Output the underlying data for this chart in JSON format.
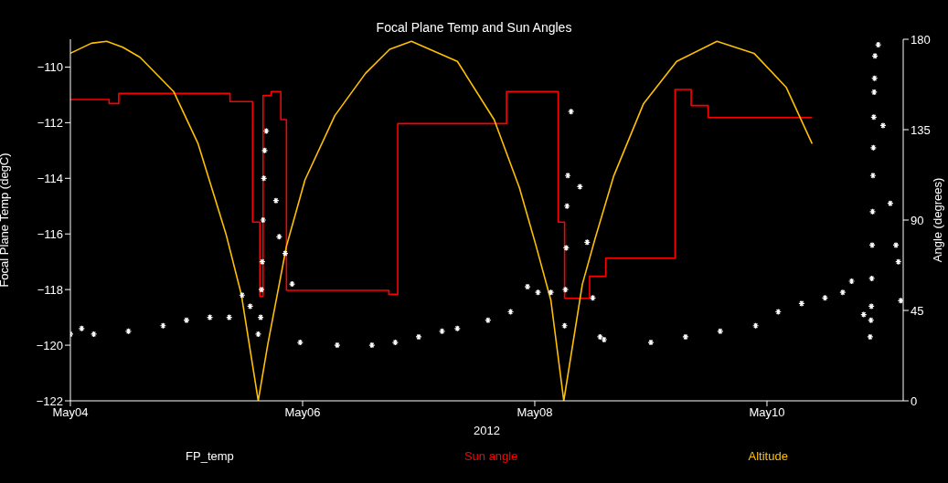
{
  "chart_data": {
    "type": "line",
    "title": "Focal Plane Temp and Sun Angles",
    "xlabel": "2012",
    "ylabel": "Focal Plane Temp (degC)",
    "y2label": "Angle (degrees)",
    "xlim": [
      "2012-05-04T00:00",
      "2012-05-11T04:10"
    ],
    "xticks": [
      {
        "value": "2012-05-04",
        "label": "May04"
      },
      {
        "value": "2012-05-06",
        "label": "May06"
      },
      {
        "value": "2012-05-08",
        "label": "May08"
      },
      {
        "value": "2012-05-10",
        "label": "May10"
      }
    ],
    "ylim": [
      -122,
      -109
    ],
    "yticks": [
      -122,
      -120,
      -118,
      -116,
      -114,
      -112,
      -110
    ],
    "y2lim": [
      0,
      180
    ],
    "y2ticks": [
      0,
      45,
      90,
      135,
      180
    ],
    "grid": false,
    "legend": "bottom",
    "series": [
      {
        "name": "FP_temp",
        "type": "scatter",
        "marker": "cross",
        "color": "#ffffff",
        "x": [
          "2012-05-04T00:00",
          "2012-05-04T02:20",
          "2012-05-04T04:50",
          "2012-05-04T12:00",
          "2012-05-04T19:10",
          "2012-05-05T00:00",
          "2012-05-05T04:50",
          "2012-05-05T08:50",
          "2012-05-05T11:30",
          "2012-05-05T13:10",
          "2012-05-05T14:50",
          "2012-05-05T15:20",
          "2012-05-05T15:30",
          "2012-05-05T15:40",
          "2012-05-05T15:50",
          "2012-05-05T16:00",
          "2012-05-05T16:10",
          "2012-05-05T16:30",
          "2012-05-05T18:30",
          "2012-05-05T19:10",
          "2012-05-05T20:24",
          "2012-05-05T21:50",
          "2012-05-05T23:30",
          "2012-05-06T07:10",
          "2012-05-06T14:20",
          "2012-05-06T19:10",
          "2012-05-07T00:00",
          "2012-05-07T04:50",
          "2012-05-07T08:00",
          "2012-05-07T14:20",
          "2012-05-07T19:00",
          "2012-05-07T22:30",
          "2012-05-08T00:40",
          "2012-05-08T03:20",
          "2012-05-08T06:10",
          "2012-05-08T06:20",
          "2012-05-08T06:30",
          "2012-05-08T06:40",
          "2012-05-08T06:50",
          "2012-05-08T07:30",
          "2012-05-08T09:20",
          "2012-05-08T10:50",
          "2012-05-08T12:00",
          "2012-05-08T13:30",
          "2012-05-08T14:20",
          "2012-05-09T00:00",
          "2012-05-09T07:10",
          "2012-05-09T14:20",
          "2012-05-09T21:40",
          "2012-05-10T02:20",
          "2012-05-10T07:10",
          "2012-05-10T12:00",
          "2012-05-10T15:40",
          "2012-05-10T17:30",
          "2012-05-10T20:00",
          "2012-05-10T21:20",
          "2012-05-10T21:30",
          "2012-05-10T21:35",
          "2012-05-10T21:40",
          "2012-05-10T21:45",
          "2012-05-10T21:50",
          "2012-05-10T21:55",
          "2012-05-10T22:00",
          "2012-05-10T22:05",
          "2012-05-10T22:10",
          "2012-05-10T22:15",
          "2012-05-10T22:20",
          "2012-05-10T23:00",
          "2012-05-11T00:00",
          "2012-05-11T01:30",
          "2012-05-11T02:40",
          "2012-05-11T03:10",
          "2012-05-11T03:40"
        ],
        "values": [
          -119.6,
          -119.4,
          -119.6,
          -119.5,
          -119.3,
          -119.1,
          -119.0,
          -119.0,
          -118.2,
          -118.6,
          -119.6,
          -119.0,
          -118.0,
          -117.0,
          -115.5,
          -114.0,
          -113.0,
          -112.3,
          -114.8,
          -116.1,
          -116.7,
          -117.8,
          -119.9,
          -120.0,
          -120.0,
          -119.9,
          -119.7,
          -119.5,
          -119.4,
          -119.1,
          -118.8,
          -117.9,
          -118.1,
          -118.1,
          -119.3,
          -118.0,
          -116.5,
          -115.0,
          -113.9,
          -111.6,
          -114.3,
          -116.3,
          -118.3,
          -119.7,
          -119.8,
          -119.9,
          -119.7,
          -119.5,
          -119.3,
          -118.8,
          -118.5,
          -118.3,
          -118.1,
          -117.7,
          -118.9,
          -119.7,
          -119.1,
          -118.6,
          -117.6,
          -116.4,
          -115.2,
          -113.9,
          -112.9,
          -111.8,
          -110.9,
          -110.4,
          -109.6,
          -109.2,
          -112.1,
          -114.9,
          -116.4,
          -117.0,
          -118.4
        ]
      },
      {
        "name": "Sun angle",
        "type": "step",
        "axis": "y2",
        "color": "#ff0000",
        "x": [
          "2012-05-04T00:00",
          "2012-05-04T08:00",
          "2012-05-04T10:00",
          "2012-05-05T09:00",
          "2012-05-05T13:40",
          "2012-05-05T15:10",
          "2012-05-05T15:50",
          "2012-05-05T17:30",
          "2012-05-05T19:30",
          "2012-05-05T20:40",
          "2012-05-06T17:50",
          "2012-05-06T19:40",
          "2012-05-07T18:10",
          "2012-05-08T04:50",
          "2012-05-08T06:10",
          "2012-05-08T11:20",
          "2012-05-08T14:40",
          "2012-05-09T05:00",
          "2012-05-09T08:20",
          "2012-05-09T11:50",
          "2012-05-10T09:20"
        ],
        "values": [
          150,
          148,
          153,
          149,
          89,
          52,
          152,
          154,
          140,
          55,
          53,
          138,
          154,
          89,
          51,
          62,
          71,
          155,
          147,
          141,
          141
        ]
      },
      {
        "name": "Altitude",
        "axis": "y2",
        "color": "#ffc000",
        "x": [
          "2012-05-04T00:00",
          "2012-05-04T04:20",
          "2012-05-04T07:30",
          "2012-05-04T10:50",
          "2012-05-04T14:24",
          "2012-05-04T21:20",
          "2012-05-05T02:24",
          "2012-05-05T08:10",
          "2012-05-05T11:20",
          "2012-05-05T14:50",
          "2012-05-05T16:48",
          "2012-05-05T20:40",
          "2012-05-06T00:30",
          "2012-05-06T06:40",
          "2012-05-06T13:00",
          "2012-05-06T18:00",
          "2012-05-06T22:30",
          "2012-05-07T08:00",
          "2012-05-07T15:36",
          "2012-05-07T20:50",
          "2012-05-08T00:10",
          "2012-05-08T03:20",
          "2012-05-08T06:00",
          "2012-05-08T09:50",
          "2012-05-08T12:30",
          "2012-05-08T16:20",
          "2012-05-08T22:30",
          "2012-05-09T05:20",
          "2012-05-09T13:40",
          "2012-05-09T21:20",
          "2012-05-10T04:00",
          "2012-05-10T09:20"
        ],
        "values": [
          173,
          178,
          179,
          176,
          171,
          154,
          128,
          83,
          53,
          0,
          28,
          77,
          110,
          142,
          163,
          175,
          179,
          169,
          140,
          106,
          78,
          50,
          0,
          58,
          81,
          112,
          148,
          169,
          179,
          173,
          156,
          128
        ]
      }
    ]
  }
}
